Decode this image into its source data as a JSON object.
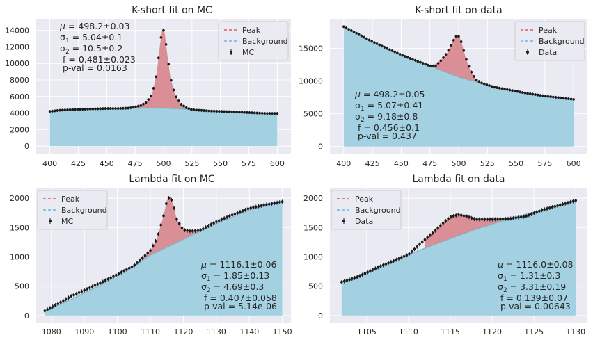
{
  "chart_data": [
    {
      "type": "line",
      "title": "K-short fit on MC",
      "xlim": [
        388,
        612
      ],
      "ylim": [
        -1000,
        15400
      ],
      "xticks": [
        400,
        425,
        450,
        475,
        500,
        525,
        550,
        575,
        600
      ],
      "yticks": [
        0,
        2000,
        4000,
        6000,
        8000,
        10000,
        12000,
        14000
      ],
      "legend": {
        "placement": "top-right",
        "entries": [
          "Peak",
          "Background",
          "MC"
        ]
      },
      "series": [
        {
          "name": "Background",
          "x": [
            400,
            425,
            450,
            475,
            500,
            525,
            550,
            575,
            600
          ],
          "values": [
            4250,
            4450,
            4550,
            4600,
            4600,
            4450,
            4250,
            4050,
            3900
          ]
        },
        {
          "name": "Peak",
          "x": [
            470,
            480,
            485,
            490,
            494,
            497,
            499,
            501,
            503,
            506,
            510,
            515,
            520,
            525
          ],
          "values": [
            4650,
            4900,
            5300,
            6300,
            8800,
            12400,
            14300,
            13700,
            11400,
            8300,
            6200,
            5100,
            4650,
            4450
          ]
        },
        {
          "name": "MC",
          "x": [
            400,
            410,
            425,
            440,
            450,
            460,
            470,
            480,
            485,
            490,
            494,
            497,
            499,
            501,
            503,
            506,
            510,
            515,
            520,
            525,
            540,
            560,
            575,
            590,
            600
          ],
          "values": [
            4200,
            4350,
            4450,
            4500,
            4550,
            4550,
            4600,
            4900,
            5300,
            6300,
            8800,
            12400,
            14300,
            13700,
            11400,
            8300,
            6200,
            5100,
            4650,
            4400,
            4250,
            4150,
            4050,
            3950,
            3950
          ]
        }
      ],
      "annotations": [
        "μ = 498.2±0.03",
        "σ1 = 5.04±0.1",
        "σ2 = 10.5±0.2",
        "f = 0.481±0.023",
        "p-val = 0.0163"
      ],
      "grid": true
    },
    {
      "type": "line",
      "title": "K-short fit on data",
      "xlim": [
        388,
        612
      ],
      "ylim": [
        -1200,
        19500
      ],
      "xticks": [
        400,
        425,
        450,
        475,
        500,
        525,
        550,
        575,
        600
      ],
      "yticks": [
        0,
        5000,
        10000,
        15000
      ],
      "legend": {
        "placement": "top-right",
        "entries": [
          "Peak",
          "Background",
          "Data"
        ]
      },
      "series": [
        {
          "name": "Background",
          "x": [
            400,
            425,
            450,
            475,
            500,
            525,
            550,
            575,
            600
          ],
          "values": [
            18300,
            16000,
            14000,
            12300,
            10600,
            9400,
            8400,
            7700,
            7200
          ]
        },
        {
          "name": "Peak",
          "x": [
            478,
            485,
            490,
            494,
            497,
            499,
            501,
            503,
            506,
            510,
            515
          ],
          "values": [
            12400,
            13200,
            14300,
            15700,
            16700,
            17000,
            16600,
            15600,
            13600,
            11700,
            10200
          ]
        },
        {
          "name": "Data",
          "x": [
            400,
            410,
            425,
            440,
            450,
            460,
            475,
            480,
            485,
            490,
            494,
            497,
            499,
            501,
            503,
            506,
            510,
            515,
            520,
            530,
            545,
            560,
            575,
            590,
            600
          ],
          "values": [
            18300,
            17400,
            16000,
            14800,
            14000,
            13300,
            12300,
            12300,
            13200,
            14300,
            15700,
            16700,
            17000,
            16600,
            15600,
            13600,
            11700,
            10200,
            9700,
            9100,
            8600,
            8100,
            7700,
            7400,
            7200
          ]
        }
      ],
      "annotations": [
        "μ = 498.2±0.05",
        "σ1 = 5.07±0.41",
        "σ2 = 9.18±0.8",
        "f = 0.456±0.1",
        "p-val = 0.437"
      ],
      "grid": true
    },
    {
      "type": "line",
      "title": "Lambda fit on MC",
      "xlim": [
        1075.4,
        1152.6
      ],
      "ylim": [
        -120,
        2180
      ],
      "xticks": [
        1080,
        1090,
        1100,
        1110,
        1120,
        1130,
        1140,
        1150
      ],
      "yticks": [
        0,
        500,
        1000,
        1500,
        2000
      ],
      "legend": {
        "placement": "top-left",
        "entries": [
          "Peak",
          "Background",
          "MC"
        ]
      },
      "series": [
        {
          "name": "Background",
          "x": [
            1078,
            1085,
            1095,
            1105,
            1110,
            1120,
            1130,
            1140,
            1150
          ],
          "values": [
            80,
            250,
            520,
            850,
            1030,
            1300,
            1570,
            1800,
            1960
          ]
        },
        {
          "name": "Peak",
          "x": [
            1108,
            1110,
            1112,
            1114,
            1115,
            1116,
            1117,
            1118,
            1120,
            1122,
            1125
          ],
          "values": [
            1000,
            1110,
            1310,
            1700,
            1960,
            2030,
            1880,
            1640,
            1460,
            1440,
            1450
          ]
        },
        {
          "name": "MC",
          "x": [
            1078,
            1082,
            1086,
            1090,
            1095,
            1100,
            1105,
            1108,
            1110,
            1112,
            1114,
            1115,
            1116,
            1117,
            1118,
            1120,
            1122,
            1125,
            1130,
            1135,
            1140,
            1145,
            1150
          ],
          "values": [
            80,
            200,
            330,
            430,
            560,
            700,
            850,
            1000,
            1110,
            1310,
            1700,
            1960,
            2030,
            1880,
            1640,
            1460,
            1440,
            1450,
            1600,
            1720,
            1830,
            1890,
            1940
          ]
        }
      ],
      "annotations": [
        "μ = 1116.1±0.06",
        "σ1 = 1.85±0.13",
        "σ2 = 4.69±0.3",
        "f = 0.407±0.058",
        "p-val = 5.14e-06"
      ],
      "grid": true
    },
    {
      "type": "line",
      "title": "Lambda fit on data",
      "xlim": [
        1100.6,
        1131.4
      ],
      "ylim": [
        -120,
        2180
      ],
      "xticks": [
        1105,
        1110,
        1115,
        1120,
        1125,
        1130
      ],
      "yticks": [
        0,
        500,
        1000,
        1500,
        2000
      ],
      "legend": {
        "placement": "top-left",
        "entries": [
          "Peak",
          "Background",
          "Data"
        ]
      },
      "series": [
        {
          "name": "Background",
          "x": [
            1102,
            1106,
            1110,
            1114,
            1118,
            1122,
            1126,
            1130
          ],
          "values": [
            570,
            800,
            1040,
            1260,
            1470,
            1650,
            1800,
            1960
          ]
        },
        {
          "name": "Peak",
          "x": [
            1112,
            1113,
            1114,
            1115,
            1116,
            1117,
            1118,
            1120,
            1122
          ],
          "values": [
            1300,
            1420,
            1560,
            1680,
            1720,
            1690,
            1640,
            1640,
            1650
          ]
        },
        {
          "name": "Data",
          "x": [
            1102,
            1104,
            1106,
            1108,
            1110,
            1112,
            1113,
            1114,
            1115,
            1116,
            1117,
            1118,
            1120,
            1122,
            1124,
            1126,
            1128,
            1130
          ],
          "values": [
            570,
            660,
            800,
            920,
            1040,
            1300,
            1420,
            1560,
            1680,
            1720,
            1690,
            1640,
            1640,
            1650,
            1690,
            1800,
            1880,
            1960
          ]
        }
      ],
      "annotations": [
        "μ = 1116.0±0.08",
        "σ1 = 1.31±0.3",
        "σ2 = 3.31±0.19",
        "f = 0.139±0.07",
        "p-val = 0.00643"
      ],
      "grid": true
    }
  ],
  "colors": {
    "peak": "#d9898f",
    "peak_line": "#d65f5f",
    "background": "#a3d1e1",
    "background_line": "#6bb6e3",
    "data": "#1a1a1a",
    "panel": "#eaeaf2",
    "grid": "#ffffff"
  }
}
